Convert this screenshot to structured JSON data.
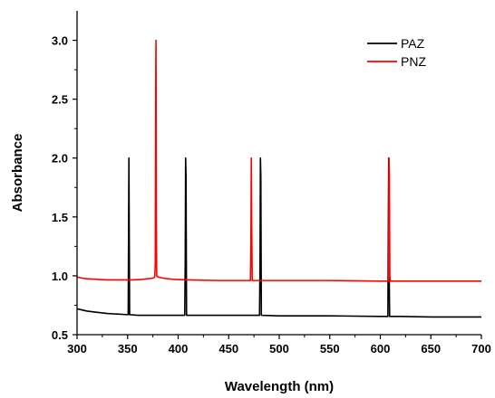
{
  "chart_data": {
    "type": "line",
    "xlabel": "Wavelength (nm)",
    "ylabel": "Absorbance",
    "xlim": [
      300,
      700
    ],
    "ylim": [
      0.5,
      3.25
    ],
    "x_ticks": [
      300,
      350,
      400,
      450,
      500,
      550,
      600,
      650,
      700
    ],
    "y_ticks": [
      0.5,
      1.0,
      1.5,
      2.0,
      2.5,
      3.0
    ],
    "x_tick_labels": [
      "300",
      "350",
      "400",
      "450",
      "500",
      "550",
      "600",
      "650",
      "700"
    ],
    "y_tick_labels": [
      "0.5",
      "1.0",
      "1.5",
      "2.0",
      "2.5",
      "3.0"
    ],
    "grid": false,
    "legend_position": "top-right",
    "series": [
      {
        "name": "PAZ",
        "color": "#000000",
        "points": [
          [
            300,
            0.72
          ],
          [
            305,
            0.71
          ],
          [
            310,
            0.7
          ],
          [
            320,
            0.69
          ],
          [
            330,
            0.68
          ],
          [
            340,
            0.675
          ],
          [
            350,
            0.67
          ],
          [
            350.6,
            0.67
          ],
          [
            351.0,
            1.45
          ],
          [
            351.3,
            2.0
          ],
          [
            351.6,
            1.4
          ],
          [
            352.0,
            0.67
          ],
          [
            360,
            0.665
          ],
          [
            380,
            0.665
          ],
          [
            400,
            0.665
          ],
          [
            406.5,
            0.665
          ],
          [
            407.0,
            1.1
          ],
          [
            407.4,
            2.0
          ],
          [
            407.8,
            1.85
          ],
          [
            408.3,
            0.665
          ],
          [
            420,
            0.665
          ],
          [
            450,
            0.665
          ],
          [
            480.5,
            0.665
          ],
          [
            481.0,
            1.1
          ],
          [
            481.4,
            2.0
          ],
          [
            481.8,
            1.85
          ],
          [
            482.3,
            0.665
          ],
          [
            500,
            0.66
          ],
          [
            550,
            0.66
          ],
          [
            600,
            0.655
          ],
          [
            607.5,
            0.655
          ],
          [
            607.9,
            1.35
          ],
          [
            608.3,
            2.0
          ],
          [
            608.7,
            1.1
          ],
          [
            609.2,
            0.655
          ],
          [
            620,
            0.655
          ],
          [
            650,
            0.65
          ],
          [
            700,
            0.65
          ]
        ]
      },
      {
        "name": "PNZ",
        "color": "#ff0000",
        "points": [
          [
            300,
            0.99
          ],
          [
            305,
            0.98
          ],
          [
            310,
            0.975
          ],
          [
            320,
            0.97
          ],
          [
            330,
            0.965
          ],
          [
            340,
            0.965
          ],
          [
            349.5,
            0.965
          ],
          [
            349.9,
            0.965
          ],
          [
            350.3,
            0.965
          ],
          [
            355,
            0.965
          ],
          [
            365,
            0.97
          ],
          [
            375,
            0.98
          ],
          [
            376.8,
            0.99
          ],
          [
            377.4,
            1.1
          ],
          [
            377.8,
            2.6
          ],
          [
            378.1,
            3.0
          ],
          [
            378.4,
            1.5
          ],
          [
            378.8,
            1.0
          ],
          [
            380,
            0.99
          ],
          [
            385,
            0.98
          ],
          [
            395,
            0.97
          ],
          [
            410,
            0.965
          ],
          [
            440,
            0.96
          ],
          [
            471.5,
            0.96
          ],
          [
            472.0,
            1.3
          ],
          [
            472.4,
            2.0
          ],
          [
            472.8,
            1.4
          ],
          [
            473.3,
            0.96
          ],
          [
            490,
            0.96
          ],
          [
            550,
            0.96
          ],
          [
            600,
            0.955
          ],
          [
            608.2,
            0.955
          ],
          [
            608.6,
            2.0
          ],
          [
            609.0,
            1.85
          ],
          [
            609.4,
            1.0
          ],
          [
            609.9,
            0.955
          ],
          [
            650,
            0.955
          ],
          [
            700,
            0.955
          ]
        ]
      }
    ]
  }
}
